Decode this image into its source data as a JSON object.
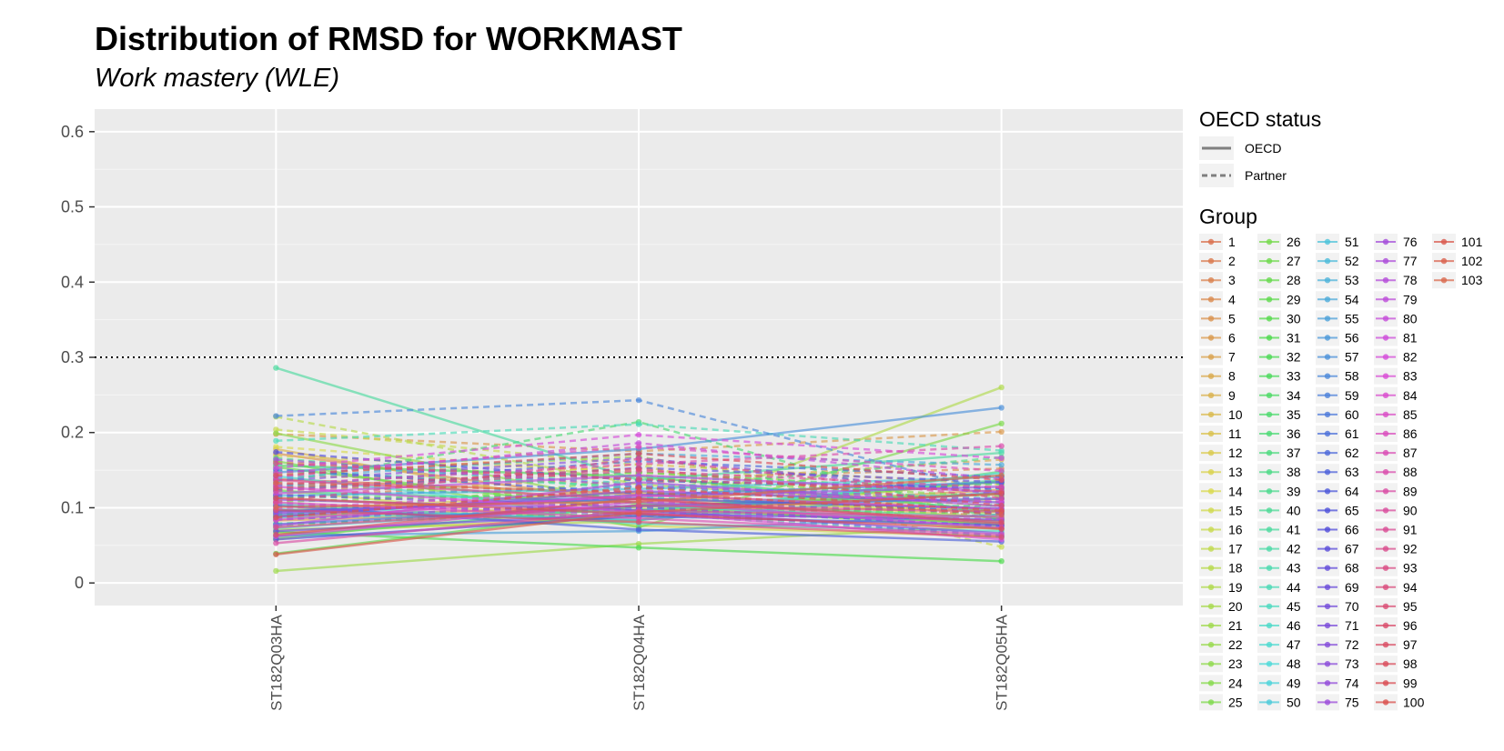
{
  "chart_data": {
    "type": "line",
    "title": "Distribution of RMSD for WORKMAST",
    "subtitle": "Work mastery (WLE)",
    "xlabel": "",
    "ylabel": "",
    "categories": [
      "ST182Q03HA",
      "ST182Q04HA",
      "ST182Q05HA"
    ],
    "ylim": [
      -0.03,
      0.63
    ],
    "yticks": [
      0,
      0.1,
      0.2,
      0.3,
      0.4,
      0.5,
      0.6
    ],
    "ytick_labels": [
      "0",
      "0.1",
      "0.2",
      "0.3",
      "0.4",
      "0.5",
      "0.6"
    ],
    "reference_line": 0.3,
    "grid": true,
    "legend_position": "right",
    "legend_linetype": {
      "title": "OECD status",
      "entries": [
        "OECD",
        "Partner"
      ]
    },
    "legend_group": {
      "title": "Group",
      "labels": [
        "1",
        "2",
        "3",
        "4",
        "5",
        "6",
        "7",
        "8",
        "9",
        "10",
        "11",
        "12",
        "13",
        "14",
        "15",
        "16",
        "17",
        "18",
        "19",
        "20",
        "21",
        "22",
        "23",
        "24",
        "25",
        "26",
        "27",
        "28",
        "29",
        "30",
        "31",
        "32",
        "33",
        "34",
        "35",
        "36",
        "37",
        "38",
        "39",
        "40",
        "41",
        "42",
        "43",
        "44",
        "45",
        "46",
        "47",
        "48",
        "49",
        "50",
        "51",
        "52",
        "53",
        "54",
        "55",
        "56",
        "57",
        "58",
        "59",
        "60",
        "61",
        "62",
        "63",
        "64",
        "65",
        "66",
        "67",
        "68",
        "69",
        "70",
        "71",
        "72",
        "73",
        "74",
        "75",
        "76",
        "77",
        "78",
        "79",
        "80",
        "81",
        "82",
        "83",
        "84",
        "85",
        "86",
        "87",
        "88",
        "89",
        "90",
        "91",
        "92",
        "93",
        "94",
        "95",
        "96",
        "97",
        "98",
        "99",
        "100",
        "101",
        "102",
        "103"
      ]
    },
    "series": [
      {
        "name": "1",
        "status": "OECD",
        "values": [
          0.138,
          0.118,
          0.096
        ]
      },
      {
        "name": "2",
        "status": "Partner",
        "values": [
          0.112,
          0.143,
          0.085
        ]
      },
      {
        "name": "3",
        "status": "OECD",
        "values": [
          0.089,
          0.101,
          0.118
        ]
      },
      {
        "name": "4",
        "status": "Partner",
        "values": [
          0.161,
          0.139,
          0.152
        ]
      },
      {
        "name": "5",
        "status": "OECD",
        "values": [
          0.172,
          0.106,
          0.078
        ]
      },
      {
        "name": "6",
        "status": "Partner",
        "values": [
          0.198,
          0.175,
          0.201
        ]
      },
      {
        "name": "7",
        "status": "OECD",
        "values": [
          0.083,
          0.097,
          0.124
        ]
      },
      {
        "name": "8",
        "status": "Partner",
        "values": [
          0.143,
          0.132,
          0.164
        ]
      },
      {
        "name": "9",
        "status": "OECD",
        "values": [
          0.178,
          0.092,
          0.112
        ]
      },
      {
        "name": "10",
        "status": "Partner",
        "values": [
          0.117,
          0.158,
          0.131
        ]
      },
      {
        "name": "11",
        "status": "OECD",
        "values": [
          0.096,
          0.121,
          0.086
        ]
      },
      {
        "name": "12",
        "status": "Partner",
        "values": [
          0.169,
          0.148,
          0.107
        ]
      },
      {
        "name": "13",
        "status": "OECD",
        "values": [
          0.066,
          0.089,
          0.136
        ]
      },
      {
        "name": "14",
        "status": "Partner",
        "values": [
          0.181,
          0.145,
          0.071
        ]
      },
      {
        "name": "15",
        "status": "OECD",
        "values": [
          0.124,
          0.076,
          0.062
        ]
      },
      {
        "name": "16",
        "status": "Partner",
        "values": [
          0.204,
          0.157,
          0.048
        ]
      },
      {
        "name": "17",
        "status": "OECD",
        "values": [
          0.058,
          0.113,
          0.094
        ]
      },
      {
        "name": "18",
        "status": "Partner",
        "values": [
          0.221,
          0.131,
          0.102
        ]
      },
      {
        "name": "19",
        "status": "OECD",
        "values": [
          0.071,
          0.082,
          0.26
        ]
      },
      {
        "name": "20",
        "status": "Partner",
        "values": [
          0.145,
          0.168,
          0.089
        ]
      },
      {
        "name": "21",
        "status": "OECD",
        "values": [
          0.016,
          0.052,
          0.076
        ]
      },
      {
        "name": "22",
        "status": "Partner",
        "values": [
          0.131,
          0.112,
          0.143
        ]
      },
      {
        "name": "23",
        "status": "OECD",
        "values": [
          0.199,
          0.104,
          0.072
        ]
      },
      {
        "name": "24",
        "status": "Partner",
        "values": [
          0.089,
          0.138,
          0.115
        ]
      },
      {
        "name": "25",
        "status": "OECD",
        "values": [
          0.162,
          0.074,
          0.212
        ]
      },
      {
        "name": "26",
        "status": "Partner",
        "values": [
          0.108,
          0.121,
          0.078
        ]
      },
      {
        "name": "27",
        "status": "OECD",
        "values": [
          0.154,
          0.095,
          0.135
        ]
      },
      {
        "name": "28",
        "status": "Partner",
        "values": [
          0.076,
          0.102,
          0.092
        ]
      },
      {
        "name": "29",
        "status": "OECD",
        "values": [
          0.039,
          0.098,
          0.079
        ]
      },
      {
        "name": "30",
        "status": "Partner",
        "values": [
          0.125,
          0.147,
          0.121
        ]
      },
      {
        "name": "31",
        "status": "OECD",
        "values": [
          0.068,
          0.047,
          0.029
        ]
      },
      {
        "name": "32",
        "status": "Partner",
        "values": [
          0.092,
          0.089,
          0.104
        ]
      },
      {
        "name": "33",
        "status": "OECD",
        "values": [
          0.156,
          0.142,
          0.095
        ]
      },
      {
        "name": "34",
        "status": "Partner",
        "values": [
          0.114,
          0.116,
          0.132
        ]
      },
      {
        "name": "35",
        "status": "OECD",
        "values": [
          0.061,
          0.102,
          0.119
        ]
      },
      {
        "name": "36",
        "status": "Partner",
        "values": [
          0.134,
          0.214,
          0.083
        ]
      },
      {
        "name": "37",
        "status": "OECD",
        "values": [
          0.097,
          0.083,
          0.148
        ]
      },
      {
        "name": "38",
        "status": "Partner",
        "values": [
          0.166,
          0.124,
          0.167
        ]
      },
      {
        "name": "39",
        "status": "OECD",
        "values": [
          0.122,
          0.107,
          0.087
        ]
      },
      {
        "name": "40",
        "status": "Partner",
        "values": [
          0.079,
          0.093,
          0.061
        ]
      },
      {
        "name": "41",
        "status": "OECD",
        "values": [
          0.286,
          0.137,
          0.173
        ]
      },
      {
        "name": "42",
        "status": "Partner",
        "values": [
          0.149,
          0.128,
          0.098
        ]
      },
      {
        "name": "43",
        "status": "OECD",
        "values": [
          0.087,
          0.096,
          0.137
        ]
      },
      {
        "name": "44",
        "status": "Partner",
        "values": [
          0.189,
          0.211,
          0.176
        ]
      },
      {
        "name": "45",
        "status": "OECD",
        "values": [
          0.105,
          0.079,
          0.069
        ]
      },
      {
        "name": "46",
        "status": "Partner",
        "values": [
          0.127,
          0.142,
          0.124
        ]
      },
      {
        "name": "47",
        "status": "OECD",
        "values": [
          0.142,
          0.088,
          0.146
        ]
      },
      {
        "name": "48",
        "status": "Partner",
        "values": [
          0.094,
          0.114,
          0.097
        ]
      },
      {
        "name": "49",
        "status": "OECD",
        "values": [
          0.073,
          0.103,
          0.082
        ]
      },
      {
        "name": "50",
        "status": "Partner",
        "values": [
          0.158,
          0.132,
          0.112
        ]
      },
      {
        "name": "51",
        "status": "OECD",
        "values": [
          0.116,
          0.125,
          0.141
        ]
      },
      {
        "name": "52",
        "status": "Partner",
        "values": [
          0.085,
          0.099,
          0.076
        ]
      },
      {
        "name": "53",
        "status": "OECD",
        "values": [
          0.098,
          0.084,
          0.121
        ]
      },
      {
        "name": "54",
        "status": "Partner",
        "values": [
          0.139,
          0.172,
          0.157
        ]
      },
      {
        "name": "55",
        "status": "OECD",
        "values": [
          0.063,
          0.069,
          0.091
        ]
      },
      {
        "name": "56",
        "status": "Partner",
        "values": [
          0.115,
          0.128,
          0.107
        ]
      },
      {
        "name": "57",
        "status": "OECD",
        "values": [
          0.147,
          0.178,
          0.233
        ]
      },
      {
        "name": "58",
        "status": "Partner",
        "values": [
          0.222,
          0.243,
          0.119
        ]
      },
      {
        "name": "59",
        "status": "OECD",
        "values": [
          0.091,
          0.117,
          0.134
        ]
      },
      {
        "name": "60",
        "status": "Partner",
        "values": [
          0.102,
          0.097,
          0.063
        ]
      },
      {
        "name": "61",
        "status": "OECD",
        "values": [
          0.078,
          0.103,
          0.112
        ]
      },
      {
        "name": "62",
        "status": "Partner",
        "values": [
          0.129,
          0.162,
          0.141
        ]
      },
      {
        "name": "63",
        "status": "OECD",
        "values": [
          0.103,
          0.071,
          0.055
        ]
      },
      {
        "name": "64",
        "status": "Partner",
        "values": [
          0.151,
          0.119,
          0.093
        ]
      },
      {
        "name": "65",
        "status": "OECD",
        "values": [
          0.058,
          0.089,
          0.077
        ]
      },
      {
        "name": "66",
        "status": "Partner",
        "values": [
          0.174,
          0.136,
          0.126
        ]
      },
      {
        "name": "67",
        "status": "OECD",
        "values": [
          0.095,
          0.112,
          0.099
        ]
      },
      {
        "name": "68",
        "status": "Partner",
        "values": [
          0.123,
          0.153,
          0.134
        ]
      },
      {
        "name": "69",
        "status": "OECD",
        "values": [
          0.069,
          0.092,
          0.084
        ]
      },
      {
        "name": "70",
        "status": "Partner",
        "values": [
          0.117,
          0.101,
          0.075
        ]
      },
      {
        "name": "71",
        "status": "OECD",
        "values": [
          0.088,
          0.122,
          0.107
        ]
      },
      {
        "name": "72",
        "status": "Partner",
        "values": [
          0.136,
          0.166,
          0.118
        ]
      },
      {
        "name": "73",
        "status": "OECD",
        "values": [
          0.111,
          0.097,
          0.066
        ]
      },
      {
        "name": "74",
        "status": "Partner",
        "values": [
          0.084,
          0.108,
          0.093
        ]
      },
      {
        "name": "75",
        "status": "OECD",
        "values": [
          0.093,
          0.115,
          0.128
        ]
      },
      {
        "name": "76",
        "status": "Partner",
        "values": [
          0.164,
          0.129,
          0.111
        ]
      },
      {
        "name": "77",
        "status": "OECD",
        "values": [
          0.076,
          0.134,
          0.102
        ]
      },
      {
        "name": "78",
        "status": "Partner",
        "values": [
          0.106,
          0.091,
          0.085
        ]
      },
      {
        "name": "79",
        "status": "OECD",
        "values": [
          0.119,
          0.143,
          0.121
        ]
      },
      {
        "name": "80",
        "status": "Partner",
        "values": [
          0.141,
          0.186,
          0.138
        ]
      },
      {
        "name": "81",
        "status": "OECD",
        "values": [
          0.062,
          0.108,
          0.073
        ]
      },
      {
        "name": "82",
        "status": "Partner",
        "values": [
          0.153,
          0.197,
          0.166
        ]
      },
      {
        "name": "83",
        "status": "OECD",
        "values": [
          0.128,
          0.094,
          0.058
        ]
      },
      {
        "name": "84",
        "status": "Partner",
        "values": [
          0.099,
          0.123,
          0.108
        ]
      },
      {
        "name": "85",
        "status": "OECD",
        "values": [
          0.084,
          0.117,
          0.098
        ]
      },
      {
        "name": "86",
        "status": "Partner",
        "values": [
          0.146,
          0.181,
          0.149
        ]
      },
      {
        "name": "87",
        "status": "OECD",
        "values": [
          0.107,
          0.086,
          0.064
        ]
      },
      {
        "name": "88",
        "status": "Partner",
        "values": [
          0.131,
          0.158,
          0.182
        ]
      },
      {
        "name": "89",
        "status": "OECD",
        "values": [
          0.053,
          0.096,
          0.088
        ]
      },
      {
        "name": "90",
        "status": "Partner",
        "values": [
          0.122,
          0.149,
          0.127
        ]
      },
      {
        "name": "91",
        "status": "OECD",
        "values": [
          0.137,
          0.111,
          0.079
        ]
      },
      {
        "name": "92",
        "status": "Partner",
        "values": [
          0.108,
          0.165,
          0.113
        ]
      },
      {
        "name": "93",
        "status": "OECD",
        "values": [
          0.074,
          0.103,
          0.095
        ]
      },
      {
        "name": "94",
        "status": "Partner",
        "values": [
          0.159,
          0.138,
          0.122
        ]
      },
      {
        "name": "95",
        "status": "OECD",
        "values": [
          0.097,
          0.081,
          0.061
        ]
      },
      {
        "name": "96",
        "status": "Partner",
        "values": [
          0.126,
          0.152,
          0.103
        ]
      },
      {
        "name": "97",
        "status": "OECD",
        "values": [
          0.064,
          0.112,
          0.081
        ]
      },
      {
        "name": "98",
        "status": "Partner",
        "values": [
          0.143,
          0.172,
          0.137
        ]
      },
      {
        "name": "99",
        "status": "OECD",
        "values": [
          0.113,
          0.092,
          0.072
        ]
      },
      {
        "name": "100",
        "status": "Partner",
        "values": [
          0.087,
          0.127,
          0.096
        ]
      },
      {
        "name": "101",
        "status": "OECD",
        "values": [
          0.038,
          0.094,
          0.119
        ]
      },
      {
        "name": "102",
        "status": "Partner",
        "values": [
          0.133,
          0.121,
          0.091
        ]
      },
      {
        "name": "103",
        "status": "OECD",
        "values": [
          0.101,
          0.108,
          0.143
        ]
      }
    ]
  }
}
